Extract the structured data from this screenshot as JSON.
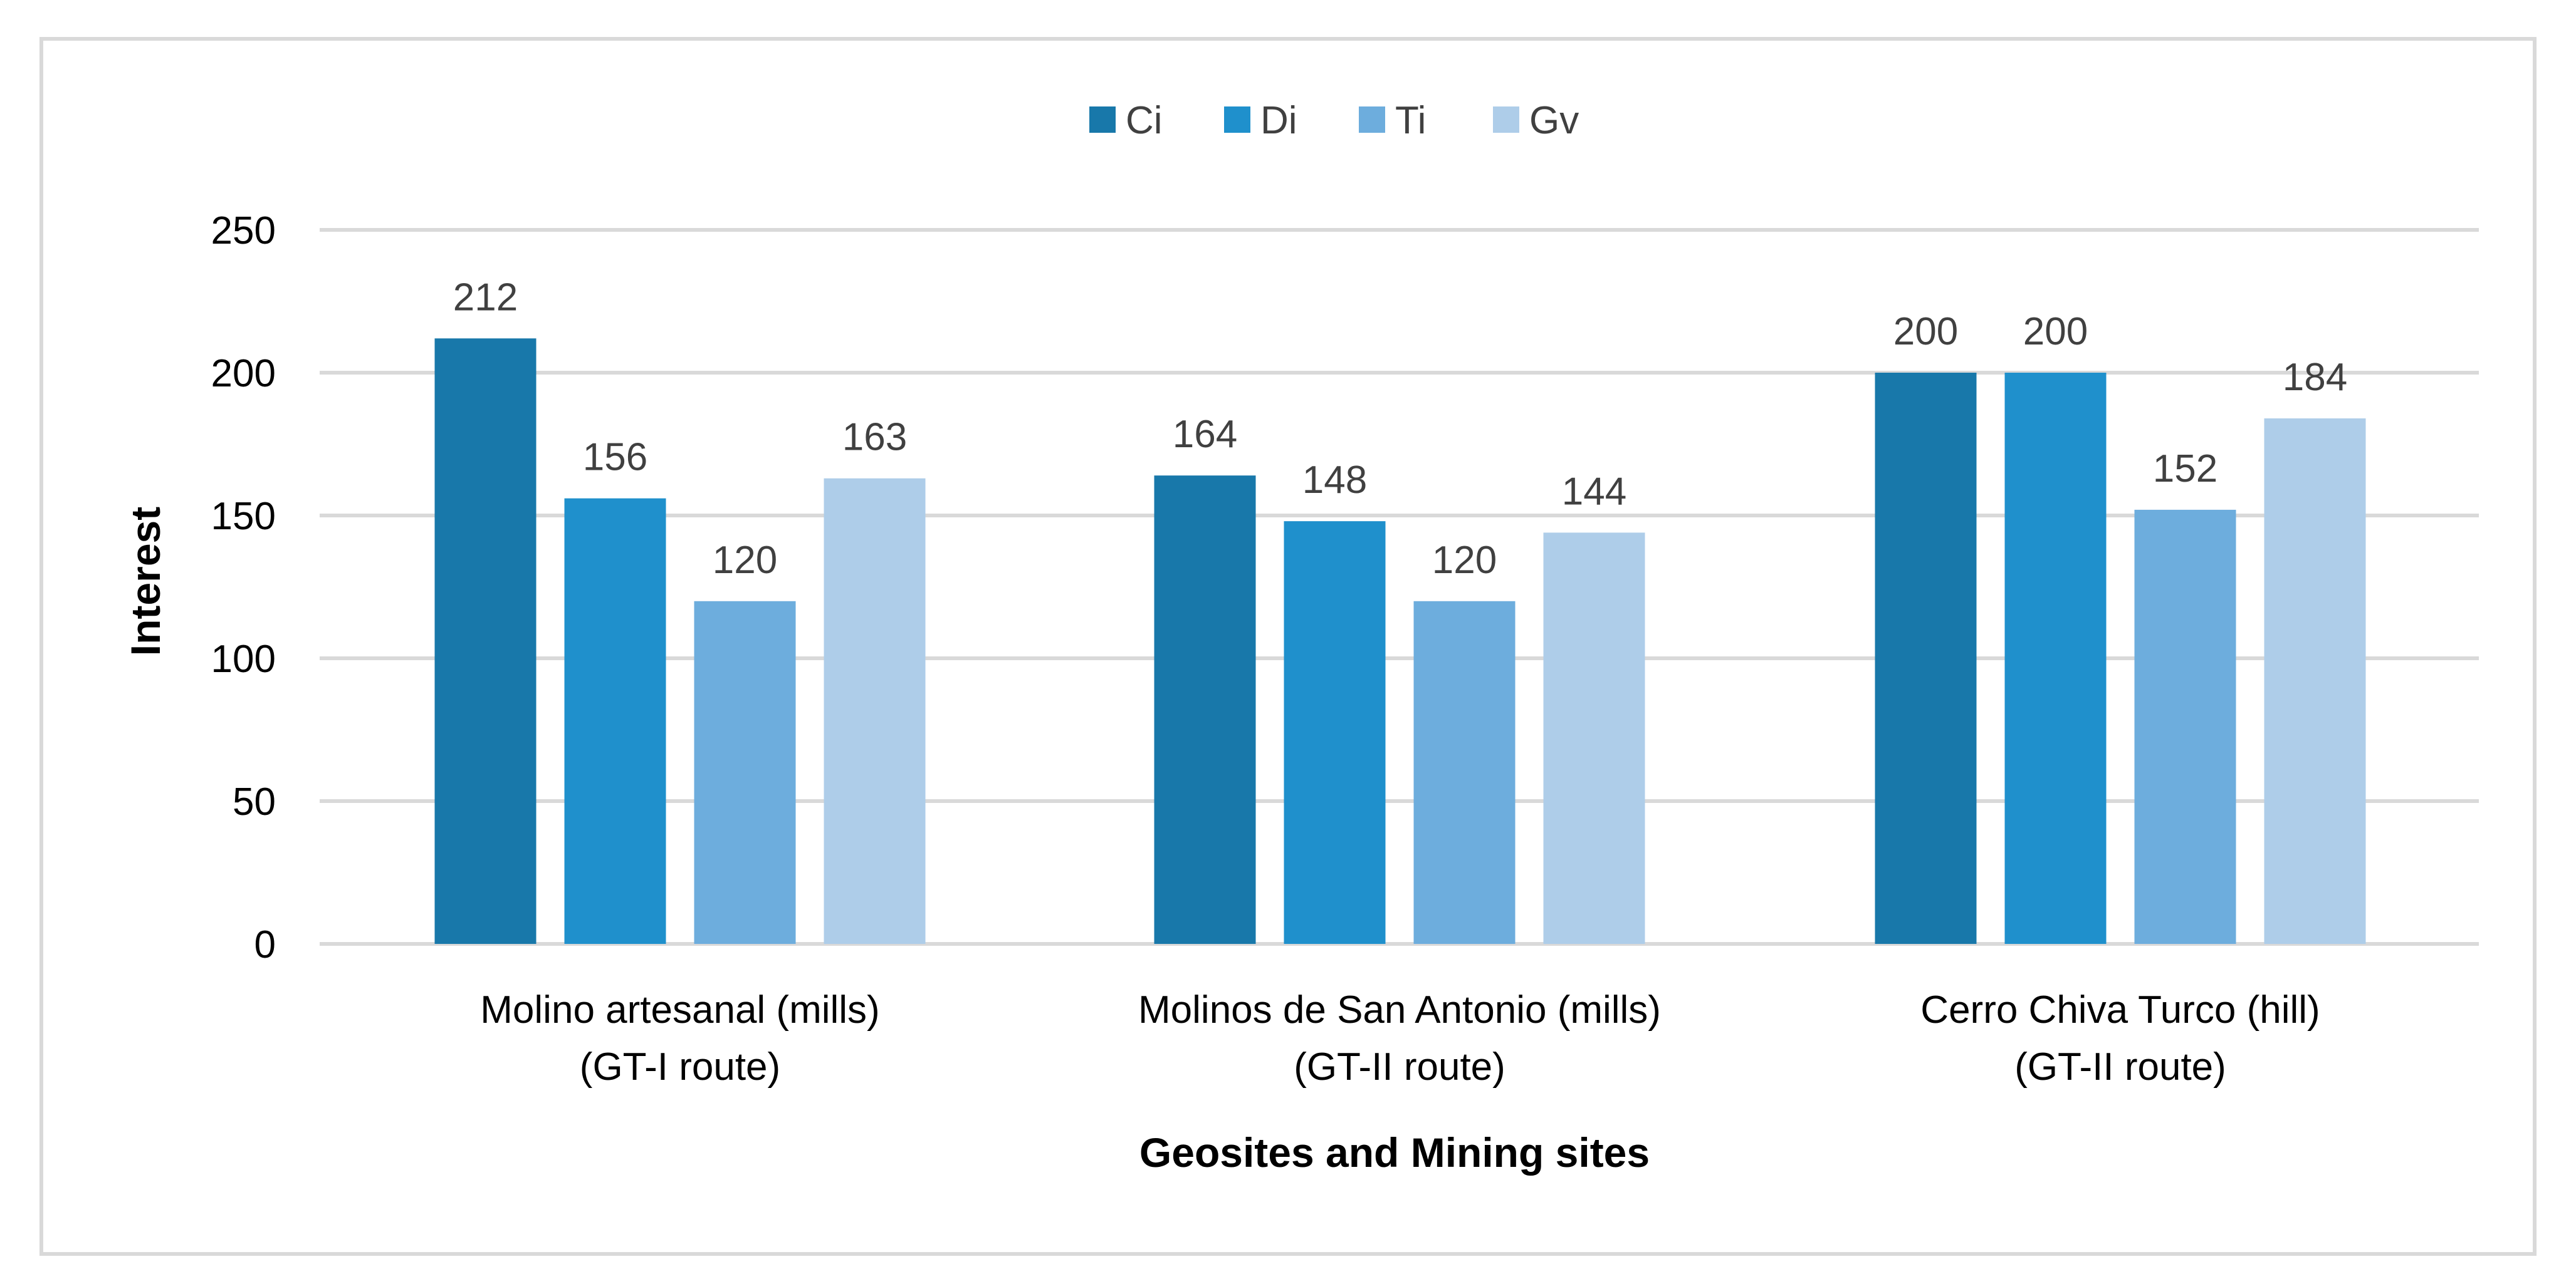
{
  "chart_data": {
    "type": "bar",
    "title": "",
    "xlabel": "Geosites and Mining sites",
    "ylabel": "Interest",
    "ylim": [
      0,
      250
    ],
    "yticks": [
      0,
      50,
      100,
      150,
      200,
      250
    ],
    "grid": true,
    "legend_position": "top-center",
    "categories": [
      [
        "Molino artesanal (mills)",
        "(GT-I route)"
      ],
      [
        "Molinos de San Antonio (mills)",
        "(GT-II route)"
      ],
      [
        "Cerro Chiva Turco (hill)",
        "(GT-II route)"
      ]
    ],
    "series": [
      {
        "name": "Ci",
        "color": "#1878aa",
        "values": [
          212,
          164,
          200
        ]
      },
      {
        "name": "Di",
        "color": "#1f90cc",
        "values": [
          156,
          148,
          200
        ]
      },
      {
        "name": "Ti",
        "color": "#6daddd",
        "values": [
          120,
          120,
          152
        ]
      },
      {
        "name": "Gv",
        "color": "#aecde9",
        "values": [
          163,
          144,
          184
        ]
      }
    ]
  }
}
